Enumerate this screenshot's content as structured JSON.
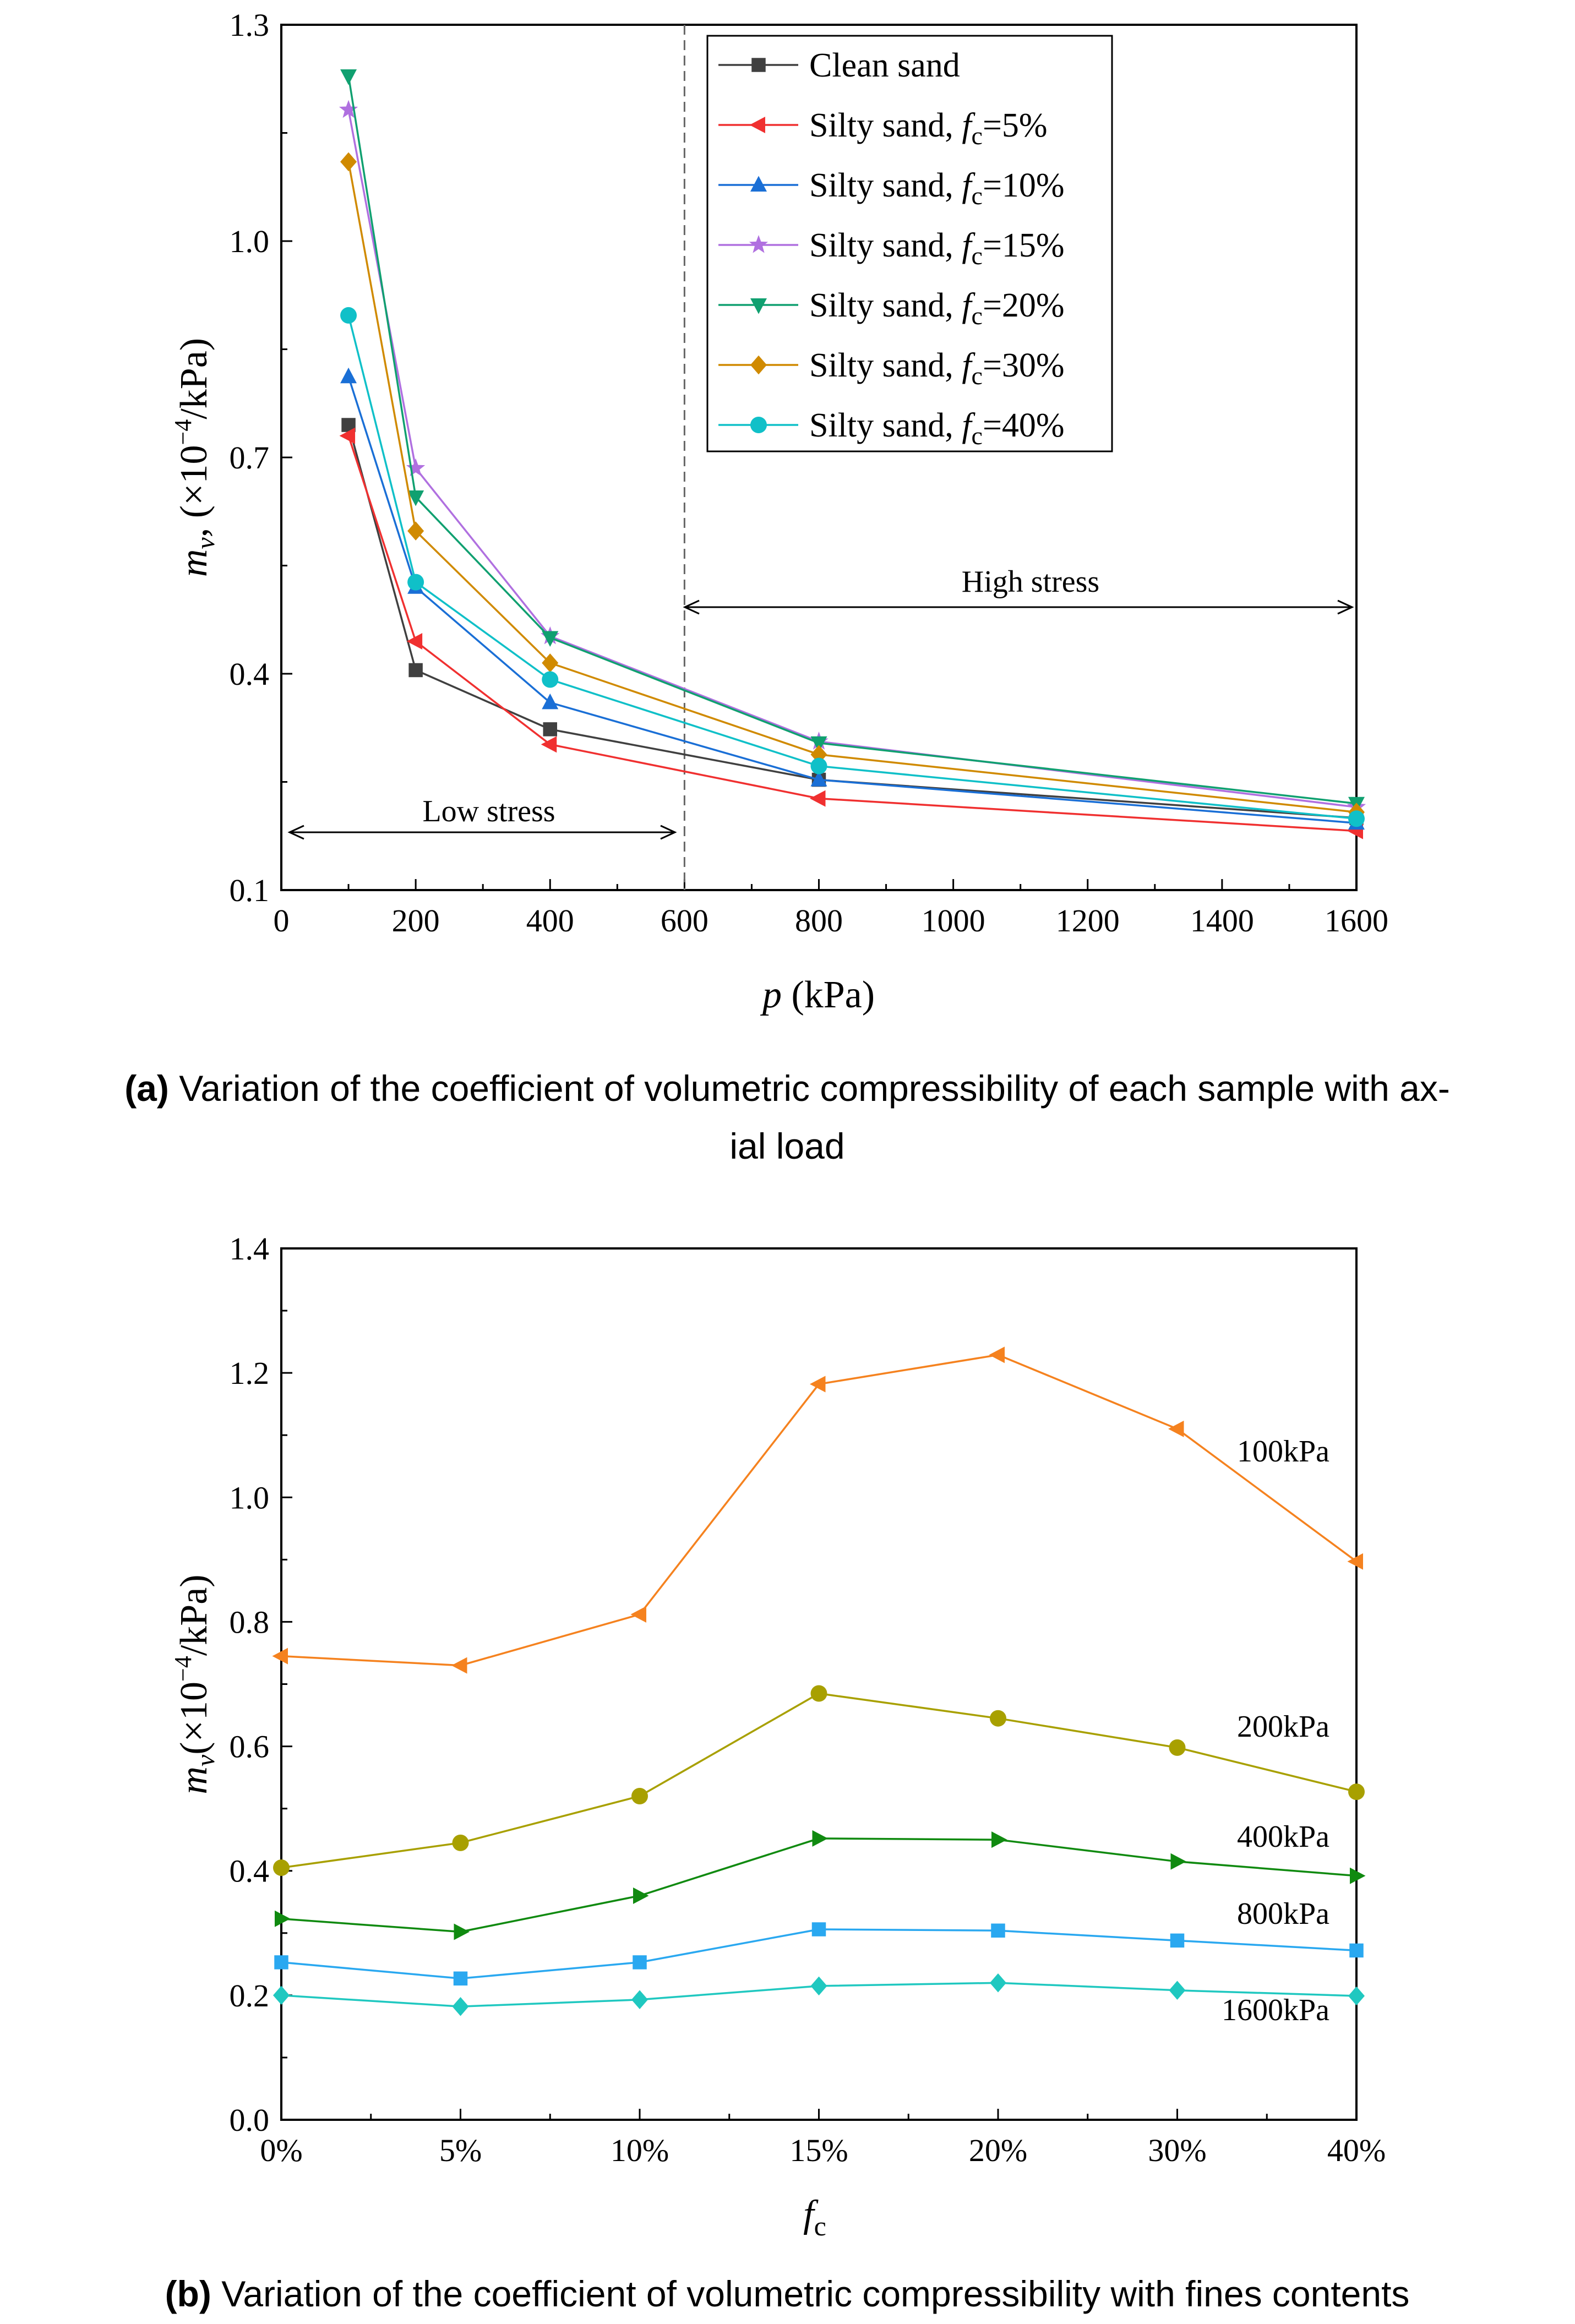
{
  "chart_data": [
    {
      "type": "line",
      "panel": "a",
      "xlabel_var": "p",
      "xlabel_unit": " (kPa)",
      "ylabel": "mv (×10−4/kPa)",
      "ylabel_parts": {
        "var": "m",
        "sub": "v",
        "pre": ", (×10",
        "sup": "−4",
        "post": "/kPa)"
      },
      "x": [
        100,
        200,
        400,
        800,
        1600
      ],
      "x_ticks": [
        "0",
        "200",
        "400",
        "600",
        "800",
        "1000",
        "1200",
        "1400",
        "1600"
      ],
      "y_ticks": [
        "0.1",
        "0.4",
        "0.7",
        "1.0",
        "1.3"
      ],
      "xlim": [
        0,
        1600
      ],
      "ylim": [
        0.1,
        1.3
      ],
      "divider_x": 600,
      "annotations": {
        "low": "Low stress",
        "high": "High stress"
      },
      "series": [
        {
          "name": "Clean sand",
          "prefix": "Clean sand",
          "fc": "",
          "color": "#404040",
          "marker": "square",
          "values": [
            0.745,
            0.405,
            0.323,
            0.253,
            0.2
          ]
        },
        {
          "name": "Silty sand, fc=5%",
          "prefix": "Silty sand, ",
          "fc": "=5%",
          "color": "#f03030",
          "marker": "triangle-left",
          "values": [
            0.73,
            0.445,
            0.302,
            0.227,
            0.182
          ]
        },
        {
          "name": "Silty sand, fc=10%",
          "prefix": "Silty sand, ",
          "fc": "=10%",
          "color": "#1a6fd6",
          "marker": "triangle-up",
          "values": [
            0.812,
            0.52,
            0.36,
            0.253,
            0.193
          ]
        },
        {
          "name": "Silty sand, fc=15%",
          "prefix": "Silty sand, ",
          "fc": "=15%",
          "color": "#b070e0",
          "marker": "star",
          "values": [
            1.182,
            0.685,
            0.452,
            0.306,
            0.215
          ]
        },
        {
          "name": "Silty sand, fc=20%",
          "prefix": "Silty sand, ",
          "fc": "=20%",
          "color": "#10a070",
          "marker": "triangle-down",
          "values": [
            1.229,
            0.645,
            0.45,
            0.304,
            0.22
          ]
        },
        {
          "name": "Silty sand, fc=30%",
          "prefix": "Silty sand, ",
          "fc": "=30%",
          "color": "#d08a00",
          "marker": "diamond",
          "values": [
            1.11,
            0.598,
            0.415,
            0.288,
            0.208
          ]
        },
        {
          "name": "Silty sand, fc=40%",
          "prefix": "Silty sand, ",
          "fc": "=40%",
          "color": "#10c0c8",
          "marker": "circle",
          "values": [
            0.897,
            0.527,
            0.392,
            0.272,
            0.199
          ]
        }
      ],
      "caption": {
        "label": "(a)",
        "line1": " Variation of the coefficient of volumetric compressibility of each sample with ax-",
        "line2": "ial load"
      }
    },
    {
      "type": "line",
      "panel": "b",
      "xlabel_var": "f",
      "xlabel_sub": "c",
      "ylabel": "mv(×10−4/kPa)",
      "ylabel_parts": {
        "var": "m",
        "sub": "v",
        "pre": "(×10",
        "sup": "−4",
        "post": "/kPa)"
      },
      "categories": [
        "0%",
        "5%",
        "10%",
        "15%",
        "20%",
        "30%",
        "40%"
      ],
      "y_ticks": [
        "0.0",
        "0.2",
        "0.4",
        "0.6",
        "0.8",
        "1.0",
        "1.2",
        "1.4"
      ],
      "ylim": [
        0.0,
        1.4
      ],
      "series": [
        {
          "name": "100kPa",
          "color": "#f5821f",
          "marker": "triangle-left",
          "values": [
            0.745,
            0.73,
            0.812,
            1.182,
            1.229,
            1.11,
            0.897
          ]
        },
        {
          "name": "200kPa",
          "color": "#a8a000",
          "marker": "circle",
          "values": [
            0.405,
            0.445,
            0.52,
            0.685,
            0.645,
            0.598,
            0.527
          ]
        },
        {
          "name": "400kPa",
          "color": "#108a10",
          "marker": "triangle-right",
          "values": [
            0.323,
            0.302,
            0.36,
            0.452,
            0.45,
            0.415,
            0.392
          ]
        },
        {
          "name": "800kPa",
          "color": "#2aa8f0",
          "marker": "square",
          "values": [
            0.253,
            0.227,
            0.253,
            0.306,
            0.304,
            0.288,
            0.272
          ]
        },
        {
          "name": "1600kPa",
          "color": "#20c8c0",
          "marker": "diamond",
          "values": [
            0.2,
            0.182,
            0.193,
            0.215,
            0.22,
            0.208,
            0.199
          ]
        }
      ],
      "caption": {
        "label": "(b)",
        "line1": " Variation of the coefficient of volumetric compressibility with fines contents"
      }
    }
  ]
}
